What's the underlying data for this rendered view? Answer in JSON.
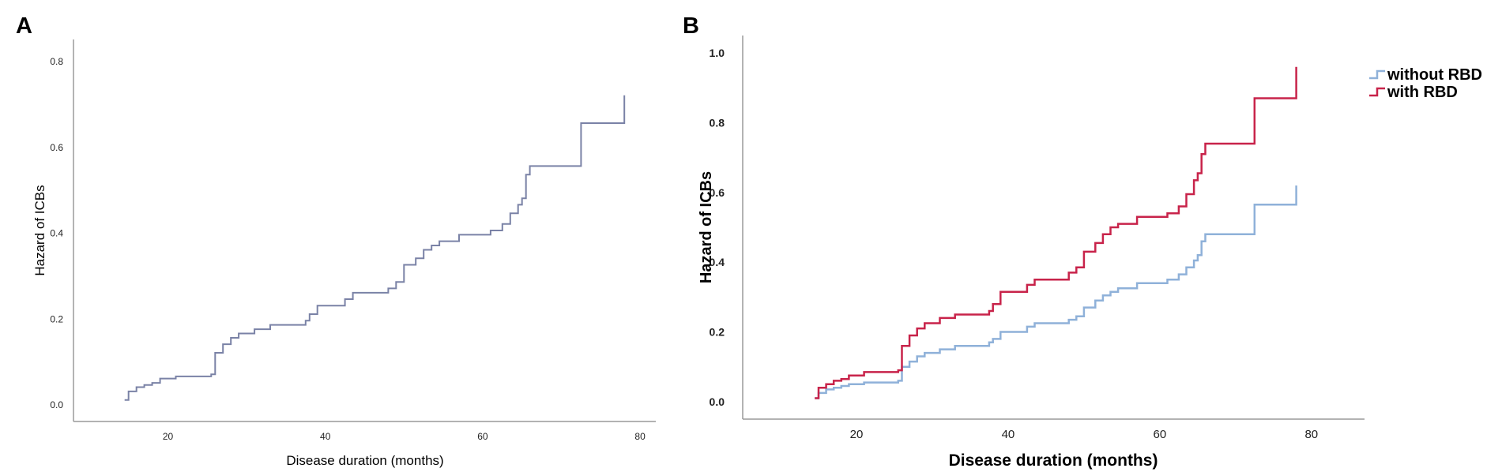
{
  "chart_data": [
    {
      "panel_label": "A",
      "type": "line",
      "step": true,
      "title": "",
      "xlabel": "Disease duration (months)",
      "ylabel": "Hazard of ICBs",
      "xlim": [
        8,
        82
      ],
      "ylim": [
        -0.04,
        0.85
      ],
      "xticks": [
        20,
        40,
        60,
        80
      ],
      "yticks": [
        0.0,
        0.2,
        0.4,
        0.6,
        0.8
      ],
      "ytick_labels": [
        "0.0",
        "0.2",
        "0.4",
        "0.6",
        "0.8"
      ],
      "grid": false,
      "legend": false,
      "series": [
        {
          "name": "",
          "color": "#7a82a6",
          "x": [
            14.5,
            15.0,
            16.0,
            17.0,
            18.0,
            19.0,
            21.0,
            23.5,
            25.5,
            26.0,
            27.0,
            28.0,
            29.0,
            31.0,
            33.0,
            37.5,
            38.0,
            39.0,
            42.5,
            43.5,
            48.0,
            49.0,
            50.0,
            51.5,
            52.5,
            53.5,
            54.5,
            57.0,
            61.0,
            62.5,
            63.5,
            64.5,
            65.0,
            65.5,
            66.0,
            72.5,
            78.0
          ],
          "y": [
            0.01,
            0.03,
            0.04,
            0.045,
            0.05,
            0.06,
            0.065,
            0.065,
            0.07,
            0.12,
            0.14,
            0.155,
            0.165,
            0.175,
            0.185,
            0.195,
            0.21,
            0.23,
            0.245,
            0.26,
            0.27,
            0.285,
            0.325,
            0.34,
            0.36,
            0.37,
            0.38,
            0.395,
            0.405,
            0.42,
            0.445,
            0.465,
            0.48,
            0.535,
            0.555,
            0.655,
            0.72
          ]
        }
      ]
    },
    {
      "panel_label": "B",
      "type": "line",
      "step": true,
      "title": "",
      "xlabel": "Disease duration (months)",
      "ylabel": "Hazard of ICBs",
      "xlim": [
        5,
        87
      ],
      "ylim": [
        -0.05,
        1.05
      ],
      "xticks": [
        20,
        40,
        60,
        80
      ],
      "yticks": [
        0.0,
        0.2,
        0.4,
        0.6,
        0.8,
        1.0
      ],
      "ytick_labels": [
        "0.0",
        "0.2",
        "0.4",
        "0.6",
        "0.8",
        "1.0"
      ],
      "grid": false,
      "legend": true,
      "legend_position": "top-right",
      "series": [
        {
          "name": "without RBD",
          "color": "#8fb1d9",
          "x": [
            14.5,
            15.0,
            16.0,
            17.0,
            18.0,
            19.0,
            21.0,
            25.5,
            26.0,
            27.0,
            28.0,
            29.0,
            31.0,
            33.0,
            37.5,
            38.0,
            39.0,
            42.5,
            43.5,
            48.0,
            49.0,
            50.0,
            51.5,
            52.5,
            53.5,
            54.5,
            57.0,
            61.0,
            62.5,
            63.5,
            64.5,
            65.0,
            65.5,
            66.0,
            72.5,
            78.0
          ],
          "y": [
            0.01,
            0.025,
            0.035,
            0.04,
            0.045,
            0.05,
            0.055,
            0.06,
            0.1,
            0.115,
            0.13,
            0.14,
            0.15,
            0.16,
            0.17,
            0.18,
            0.2,
            0.215,
            0.225,
            0.235,
            0.245,
            0.27,
            0.29,
            0.305,
            0.315,
            0.325,
            0.34,
            0.35,
            0.365,
            0.385,
            0.405,
            0.42,
            0.46,
            0.48,
            0.565,
            0.62
          ]
        },
        {
          "name": "with RBD",
          "color": "#c8234a",
          "x": [
            14.5,
            15.0,
            16.0,
            17.0,
            18.0,
            19.0,
            21.0,
            25.5,
            26.0,
            27.0,
            28.0,
            29.0,
            31.0,
            33.0,
            37.5,
            38.0,
            39.0,
            42.5,
            43.5,
            48.0,
            49.0,
            50.0,
            51.5,
            52.5,
            53.5,
            54.5,
            57.0,
            61.0,
            62.5,
            63.5,
            64.5,
            65.0,
            65.5,
            66.0,
            72.5,
            78.0
          ],
          "y": [
            0.01,
            0.04,
            0.05,
            0.06,
            0.065,
            0.075,
            0.085,
            0.09,
            0.16,
            0.19,
            0.21,
            0.225,
            0.24,
            0.25,
            0.26,
            0.28,
            0.315,
            0.335,
            0.35,
            0.37,
            0.385,
            0.43,
            0.455,
            0.48,
            0.5,
            0.51,
            0.53,
            0.54,
            0.56,
            0.595,
            0.635,
            0.655,
            0.71,
            0.74,
            0.87,
            0.96
          ]
        }
      ]
    }
  ]
}
